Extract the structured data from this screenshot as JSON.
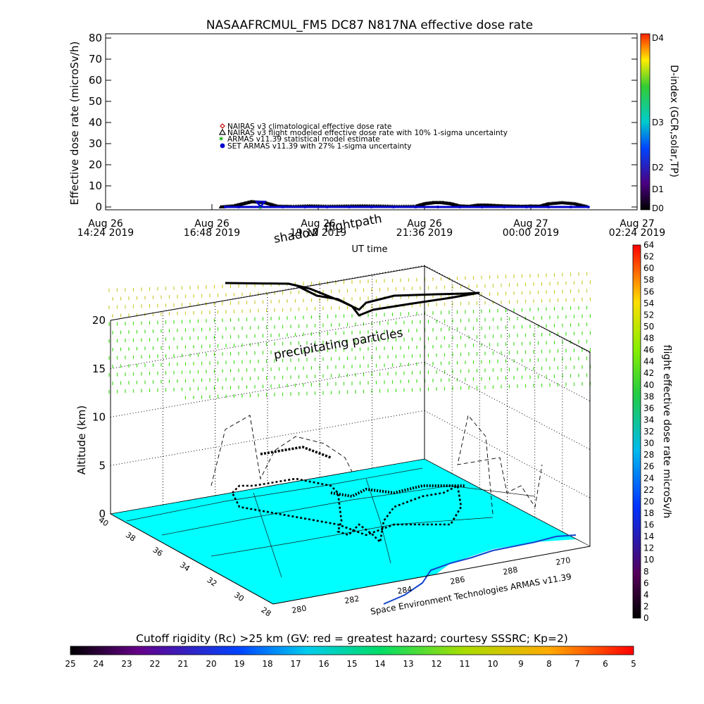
{
  "chart_data": [
    {
      "type": "scatter",
      "title": "NASAAFRCMUL_FM5 DC87 N817NA effective dose rate",
      "xlabel": "UT time",
      "ylabel": "Effective dose rate (microSv/h)",
      "ylim": [
        0,
        80
      ],
      "yticks": [
        0,
        10,
        20,
        30,
        40,
        50,
        60,
        70,
        80
      ],
      "xlim_hours": [
        0,
        12
      ],
      "xticks": [
        {
          "hour": 0,
          "line1": "Aug 26",
          "line2": "14:24 2019"
        },
        {
          "hour": 2.4,
          "line1": "Aug 26",
          "line2": "16:48 2019"
        },
        {
          "hour": 4.8,
          "line1": "Aug 26",
          "line2": "19:12 2019"
        },
        {
          "hour": 7.2,
          "line1": "Aug 26",
          "line2": "21:36 2019"
        },
        {
          "hour": 9.6,
          "line1": "Aug 27",
          "line2": "00:00 2019"
        },
        {
          "hour": 12,
          "line1": "Aug 27",
          "line2": "02:24 2019"
        }
      ],
      "legend": [
        {
          "label": "NAIRAS v3 climatological effective dose rate",
          "marker": "diamond",
          "color": "#cc0000"
        },
        {
          "label": "NAIRAS v3 flight modeled effective dose rate with 10% 1-sigma uncertainty",
          "marker": "triangle",
          "color": "#000000"
        },
        {
          "label": "ARMAS v11.39 statistical model estimate",
          "marker": "asterisk",
          "color": "#00aa00"
        },
        {
          "label": "SET ARMAS v11.39 with 27% 1-sigma uncertainty",
          "marker": "circle",
          "color": "#0000cc"
        }
      ],
      "series": [
        {
          "name": "NAIRAS v3 flight modeled effective dose rate with 10% 1-sigma uncertainty",
          "x": [
            2.6,
            2.9,
            3.1,
            3.3,
            3.6,
            3.9,
            4.2,
            4.6,
            5.0,
            5.4,
            5.8,
            6.2,
            6.6,
            7.0,
            7.2,
            7.4,
            7.6,
            7.8,
            8.0,
            8.2,
            8.4,
            8.6,
            8.8,
            9.0,
            9.2,
            9.4,
            9.6,
            9.8,
            10.0,
            10.3,
            10.6,
            10.9
          ],
          "y": [
            0,
            0.5,
            1.5,
            2.5,
            2.0,
            0.3,
            0.2,
            0.5,
            0.3,
            0.4,
            0.5,
            0.4,
            0.2,
            0.3,
            1.5,
            2.0,
            2.0,
            1.5,
            0.4,
            0.2,
            0.8,
            0.8,
            0.6,
            0.4,
            0.3,
            0.2,
            0.3,
            0.3,
            1.5,
            2.0,
            1.5,
            0
          ]
        },
        {
          "name": "SET ARMAS v11.39 with 27% 1-sigma uncertainty",
          "x": [
            2.7,
            3.0,
            3.5,
            4.0,
            4.5,
            5.0,
            5.5,
            6.0,
            6.5,
            7.0,
            7.5,
            8.0,
            8.5,
            9.0,
            9.5,
            10.0,
            10.5,
            10.9
          ],
          "y": [
            0,
            0,
            0,
            0,
            0,
            0,
            0,
            0,
            0,
            0,
            0,
            0,
            0,
            0,
            0,
            0,
            0,
            0
          ]
        }
      ],
      "right_axis": {
        "label": "D-index (GCR,solar,TP)",
        "ticks": [
          "D0",
          "D1",
          "D2",
          "D3",
          "D4"
        ]
      }
    },
    {
      "type": "scatter",
      "title": "",
      "zlabel": "Altitude (km)",
      "zticks": [
        0,
        5,
        10,
        15,
        20
      ],
      "lat_ticks": [
        40,
        38,
        36,
        34,
        32,
        30,
        28
      ],
      "lon_ticks": [
        280,
        282,
        284,
        286,
        288,
        270
      ],
      "annotations": [
        "shadow",
        "flightpath",
        "precipitating particles",
        "Space Environment Technologies ARMAS v11.39"
      ],
      "colorbar_right": {
        "label": "flight effective dose rate microSv/h",
        "min": 0,
        "max": 64,
        "ticks": [
          0,
          2,
          4,
          6,
          8,
          10,
          12,
          14,
          16,
          18,
          20,
          22,
          24,
          26,
          28,
          30,
          32,
          34,
          36,
          38,
          40,
          42,
          44,
          46,
          48,
          50,
          52,
          54,
          56,
          58,
          60,
          62,
          64
        ]
      },
      "colorbar_bottom": {
        "label": "Cutoff rigidity (Rc) >25 km (GV: red = greatest hazard; courtesy SSSRC; Kp=2)",
        "ticks": [
          25,
          24,
          23,
          22,
          21,
          20,
          19,
          18,
          17,
          16,
          15,
          14,
          13,
          12,
          11,
          10,
          9,
          8,
          7,
          6,
          5
        ]
      }
    }
  ],
  "colors": {
    "surface": "#00ffff",
    "particles_green": "#44dd22",
    "particles_yellow": "#cccc33",
    "sea_blue": "#1144cc"
  }
}
